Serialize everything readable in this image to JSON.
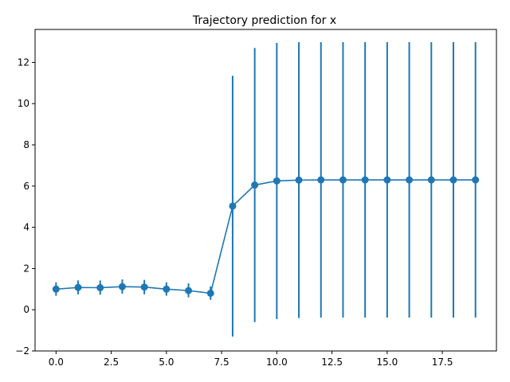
{
  "chart_data": {
    "type": "line",
    "title": "Trajectory prediction for x",
    "xlabel": "",
    "ylabel": "",
    "xlim": [
      -0.95,
      19.95
    ],
    "ylim": [
      -2,
      13.6
    ],
    "xticks": [
      0.0,
      2.5,
      5.0,
      7.5,
      10.0,
      12.5,
      15.0,
      17.5
    ],
    "xtick_labels": [
      "0.0",
      "2.5",
      "5.0",
      "7.5",
      "10.0",
      "12.5",
      "15.0",
      "17.5"
    ],
    "yticks": [
      -2,
      0,
      2,
      4,
      6,
      8,
      10,
      12
    ],
    "ytick_labels": [
      "−2",
      "0",
      "2",
      "4",
      "6",
      "8",
      "10",
      "12"
    ],
    "grid": false,
    "color": "#1f77b4",
    "series": [
      {
        "x": [
          0,
          1,
          2,
          3,
          4,
          5,
          6,
          7,
          8,
          9,
          10,
          11,
          12,
          13,
          14,
          15,
          16,
          17,
          18,
          19
        ],
        "y": [
          1.0,
          1.08,
          1.07,
          1.12,
          1.1,
          1.0,
          0.93,
          0.8,
          5.03,
          6.05,
          6.25,
          6.29,
          6.3,
          6.3,
          6.3,
          6.3,
          6.3,
          6.3,
          6.3,
          6.3
        ],
        "yerr_low": [
          0.68,
          0.75,
          0.73,
          0.78,
          0.75,
          0.68,
          0.6,
          0.48,
          -1.3,
          -0.6,
          -0.45,
          -0.4,
          -0.38,
          -0.38,
          -0.38,
          -0.38,
          -0.38,
          -0.38,
          -0.38,
          -0.38
        ],
        "yerr_high": [
          1.33,
          1.42,
          1.42,
          1.47,
          1.45,
          1.33,
          1.28,
          1.13,
          11.35,
          12.7,
          12.95,
          12.98,
          12.98,
          12.98,
          12.98,
          12.98,
          12.98,
          12.98,
          12.98,
          12.98
        ]
      }
    ]
  }
}
